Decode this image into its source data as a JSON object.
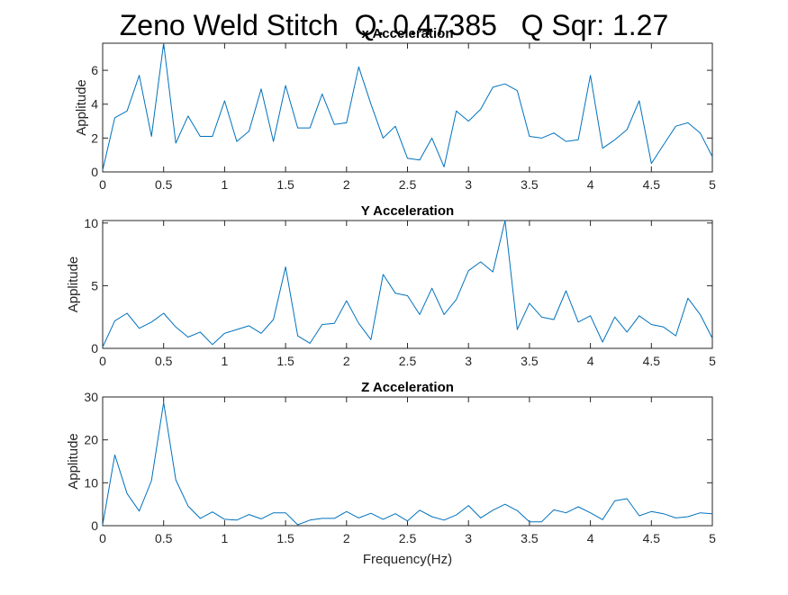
{
  "figure": {
    "suptitle": "Zeno Weld Stitch  Q: 0.47385   Q Sqr: 1.27",
    "line_color": "#0072BD"
  },
  "chart_data": [
    {
      "type": "line",
      "title": "x Acceleration",
      "xlabel": "",
      "ylabel": "Applitude",
      "xlim": [
        0,
        5
      ],
      "ylim": [
        0,
        7.6
      ],
      "xticks": [
        0,
        0.5,
        1,
        1.5,
        2,
        2.5,
        3,
        3.5,
        4,
        4.5,
        5
      ],
      "xticklabels": [
        "0",
        "0.5",
        "1",
        "1.5",
        "2",
        "2.5",
        "3",
        "3.5",
        "4",
        "4.5",
        "5"
      ],
      "yticks": [
        0,
        2,
        4,
        6
      ],
      "yticklabels": [
        "0",
        "2",
        "4",
        "6"
      ],
      "x": [
        0,
        0.1,
        0.2,
        0.3,
        0.4,
        0.5,
        0.6,
        0.7,
        0.8,
        0.9,
        1.0,
        1.1,
        1.2,
        1.3,
        1.4,
        1.5,
        1.6,
        1.7,
        1.8,
        1.9,
        2.0,
        2.1,
        2.2,
        2.3,
        2.4,
        2.5,
        2.6,
        2.7,
        2.8,
        2.9,
        3.0,
        3.1,
        3.2,
        3.3,
        3.4,
        3.5,
        3.6,
        3.7,
        3.8,
        3.9,
        4.0,
        4.1,
        4.2,
        4.3,
        4.4,
        4.5,
        4.6,
        4.7,
        4.8,
        4.9,
        5.0
      ],
      "y": [
        0.1,
        3.2,
        3.6,
        5.7,
        2.1,
        7.6,
        1.7,
        3.3,
        2.1,
        2.1,
        4.2,
        1.8,
        2.4,
        4.9,
        1.8,
        5.1,
        2.6,
        2.6,
        4.6,
        2.8,
        2.9,
        6.2,
        4.0,
        2.0,
        2.7,
        0.8,
        0.7,
        2.0,
        0.3,
        3.6,
        3.0,
        3.7,
        5.0,
        5.2,
        4.8,
        2.1,
        2.0,
        2.3,
        1.8,
        1.9,
        5.7,
        1.4,
        1.9,
        2.5,
        4.2,
        0.5,
        1.6,
        2.7,
        2.9,
        2.3,
        0.9
      ]
    },
    {
      "type": "line",
      "title": "Y Acceleration",
      "xlabel": "",
      "ylabel": "Applitude",
      "xlim": [
        0,
        5
      ],
      "ylim": [
        0,
        10.2
      ],
      "xticks": [
        0,
        0.5,
        1,
        1.5,
        2,
        2.5,
        3,
        3.5,
        4,
        4.5,
        5
      ],
      "xticklabels": [
        "0",
        "0.5",
        "1",
        "1.5",
        "2",
        "2.5",
        "3",
        "3.5",
        "4",
        "4.5",
        "5"
      ],
      "yticks": [
        0,
        5,
        10
      ],
      "yticklabels": [
        "0",
        "5",
        "10"
      ],
      "x": [
        0,
        0.1,
        0.2,
        0.3,
        0.4,
        0.5,
        0.6,
        0.7,
        0.8,
        0.9,
        1.0,
        1.1,
        1.2,
        1.3,
        1.4,
        1.5,
        1.6,
        1.7,
        1.8,
        1.9,
        2.0,
        2.1,
        2.2,
        2.3,
        2.4,
        2.5,
        2.6,
        2.7,
        2.8,
        2.9,
        3.0,
        3.1,
        3.2,
        3.3,
        3.4,
        3.5,
        3.6,
        3.7,
        3.8,
        3.9,
        4.0,
        4.1,
        4.2,
        4.3,
        4.4,
        4.5,
        4.6,
        4.7,
        4.8,
        4.9,
        5.0
      ],
      "y": [
        0.1,
        2.2,
        2.8,
        1.6,
        2.1,
        2.8,
        1.7,
        0.9,
        1.3,
        0.3,
        1.2,
        1.5,
        1.8,
        1.2,
        2.3,
        6.5,
        1.0,
        0.4,
        1.9,
        2.0,
        3.8,
        2.0,
        0.7,
        5.9,
        4.4,
        4.2,
        2.7,
        4.8,
        2.7,
        3.9,
        6.2,
        6.9,
        6.1,
        10.2,
        1.5,
        3.6,
        2.5,
        2.3,
        4.6,
        2.1,
        2.6,
        0.5,
        2.5,
        1.3,
        2.6,
        1.9,
        1.7,
        1.0,
        4.0,
        2.7,
        0.8
      ]
    },
    {
      "type": "line",
      "title": "Z Acceleration",
      "xlabel": "Frequency(Hz)",
      "ylabel": "Applitude",
      "xlim": [
        0,
        5
      ],
      "ylim": [
        0,
        30
      ],
      "xticks": [
        0,
        0.5,
        1,
        1.5,
        2,
        2.5,
        3,
        3.5,
        4,
        4.5,
        5
      ],
      "xticklabels": [
        "0",
        "0.5",
        "1",
        "1.5",
        "2",
        "2.5",
        "3",
        "3.5",
        "4",
        "4.5",
        "5"
      ],
      "yticks": [
        0,
        10,
        20,
        30
      ],
      "yticklabels": [
        "0",
        "10",
        "20",
        "30"
      ],
      "x": [
        0,
        0.1,
        0.2,
        0.3,
        0.4,
        0.5,
        0.6,
        0.7,
        0.8,
        0.9,
        1.0,
        1.1,
        1.2,
        1.3,
        1.4,
        1.5,
        1.6,
        1.7,
        1.8,
        1.9,
        2.0,
        2.1,
        2.2,
        2.3,
        2.4,
        2.5,
        2.6,
        2.7,
        2.8,
        2.9,
        3.0,
        3.1,
        3.2,
        3.3,
        3.4,
        3.5,
        3.6,
        3.7,
        3.8,
        3.9,
        4.0,
        4.1,
        4.2,
        4.3,
        4.4,
        4.5,
        4.6,
        4.7,
        4.8,
        4.9,
        5.0
      ],
      "y": [
        0.2,
        16.5,
        7.5,
        3.4,
        10.5,
        28.7,
        10.7,
        4.6,
        1.7,
        3.2,
        1.5,
        1.3,
        2.6,
        1.6,
        3.0,
        3.0,
        0.2,
        1.3,
        1.7,
        1.7,
        3.3,
        1.8,
        2.9,
        1.5,
        2.8,
        1.1,
        3.6,
        2.1,
        1.3,
        2.5,
        4.7,
        1.8,
        3.6,
        5.0,
        3.5,
        0.9,
        0.9,
        3.7,
        3.0,
        4.4,
        3.0,
        1.4,
        5.8,
        6.3,
        2.3,
        3.3,
        2.8,
        1.8,
        2.1,
        3.0,
        2.8
      ]
    }
  ]
}
